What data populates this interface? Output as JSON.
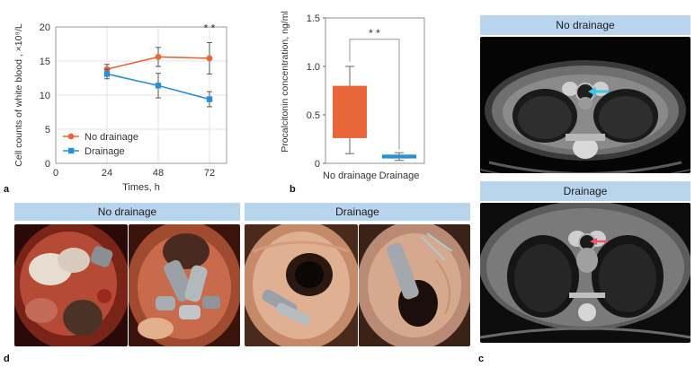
{
  "panels": {
    "a": "a",
    "b": "b",
    "c": "c",
    "d": "d"
  },
  "chart_a": {
    "type": "line",
    "xlabel": "Times, h",
    "ylabel": "Cell counts of white blood , ×10⁹/L",
    "x_ticks": [
      "0",
      "24",
      "48",
      "72"
    ],
    "y_ticks": [
      "0",
      "5",
      "10",
      "15",
      "20"
    ],
    "xlim": [
      0,
      80
    ],
    "ylim": [
      0,
      20
    ],
    "significance": "* *",
    "legend_position": "bottom-left",
    "series": [
      {
        "name": "No drainage",
        "color": "#e8663a",
        "x": [
          24,
          48,
          72
        ],
        "y": [
          13.8,
          15.6,
          15.4
        ],
        "err": [
          0.7,
          1.4,
          2.3
        ]
      },
      {
        "name": "Drainage",
        "color": "#2b8fd6",
        "x": [
          24,
          48,
          72
        ],
        "y": [
          13.1,
          11.4,
          9.4
        ],
        "err": [
          0.7,
          1.8,
          1.1
        ]
      }
    ]
  },
  "chart_b": {
    "type": "box",
    "ylabel": "Procalcitonin concentration, ng/ml",
    "y_ticks": [
      "0",
      "0.5",
      "1.0",
      "1.5"
    ],
    "ylim": [
      0,
      1.5
    ],
    "significance": "* *",
    "categories": [
      "No drainage",
      "Drainage"
    ],
    "boxes": [
      {
        "name": "No drainage",
        "color": "#e8663a",
        "min": 0.1,
        "q1": 0.26,
        "q3": 0.8,
        "max": 1.0
      },
      {
        "name": "Drainage",
        "color": "#2b8fd6",
        "min": 0.03,
        "q1": 0.05,
        "q3": 0.09,
        "max": 0.11
      }
    ]
  },
  "panel_c": {
    "top_label": "No drainage",
    "bottom_label": "Drainage",
    "top_arrow_color": "#3ec6e8",
    "bottom_arrow_color": "#e8556a"
  },
  "panel_d": {
    "left_label": "No drainage",
    "right_label": "Drainage"
  }
}
